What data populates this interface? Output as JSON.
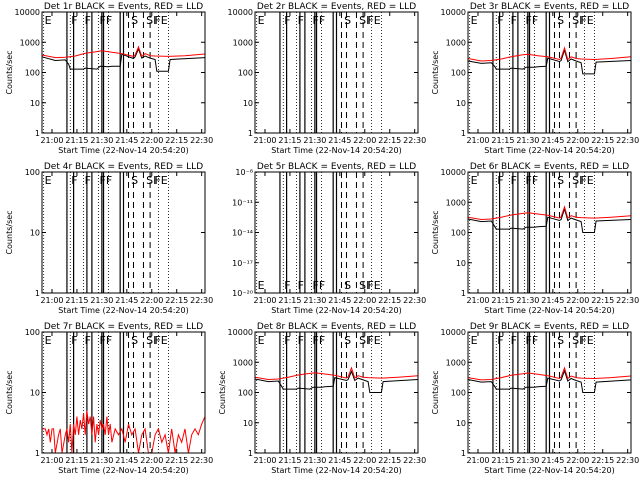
{
  "colors": {
    "events": "#000000",
    "lld": "#ff0000",
    "background": "#ffffff"
  },
  "x_axis": {
    "tick_labels": [
      "21:00",
      "21:15",
      "21:30",
      "21:45",
      "22:00",
      "22:15",
      "22:30"
    ],
    "range_minutes_after_2100": [
      -6,
      92
    ],
    "xlabel": "Start Time (22-Nov-14 20:54:20)"
  },
  "flags": {
    "solid_lines_minutes": [
      9,
      13,
      21,
      24,
      30,
      31,
      41,
      43
    ],
    "dashed_lines_minutes": [
      46,
      49,
      55,
      59
    ],
    "dotted_lines_minutes": [
      -5,
      11,
      19,
      28,
      34,
      64,
      70
    ],
    "letters": [
      {
        "text": "E",
        "minute": -5
      },
      {
        "text": "F",
        "minute": 11
      },
      {
        "text": "F",
        "minute": 19
      },
      {
        "text": "FF",
        "minute": 28
      },
      {
        "text": "S",
        "minute": 47
      },
      {
        "text": "SI",
        "minute": 56
      },
      {
        "text": "FE",
        "minute": 61
      }
    ]
  },
  "chart_data": [
    {
      "type": "line",
      "title": "Det 1r BLACK = Events, RED = LLD",
      "ylabel": "Counts/sec",
      "yscale": "log",
      "ylim": [
        1,
        10000
      ],
      "ytick_labels": [
        "1",
        "10",
        "100",
        "1000",
        "10000"
      ],
      "letters_at": "top",
      "series": [
        {
          "name": "Events",
          "x": [
            -6,
            2,
            8,
            10,
            11,
            19,
            20,
            27,
            29,
            34,
            36,
            41,
            42,
            49,
            50,
            52,
            54,
            56,
            59,
            62,
            63,
            70,
            71,
            92
          ],
          "y": [
            330,
            250,
            260,
            190,
            130,
            130,
            140,
            130,
            160,
            155,
            160,
            160,
            400,
            290,
            330,
            600,
            300,
            350,
            300,
            270,
            110,
            110,
            270,
            310
          ]
        },
        {
          "name": "LLD",
          "x": [
            -6,
            2,
            8,
            14,
            20,
            26,
            30,
            36,
            42,
            49,
            50,
            52,
            54,
            56,
            59,
            62,
            70,
            80,
            92
          ],
          "y": [
            380,
            310,
            320,
            350,
            430,
            480,
            520,
            470,
            420,
            340,
            380,
            700,
            340,
            420,
            360,
            350,
            340,
            360,
            410
          ]
        }
      ]
    },
    {
      "type": "line",
      "title": "Det 2r BLACK = Events, RED = LLD",
      "ylabel": "",
      "yscale": "log",
      "ylim": [
        1,
        10000
      ],
      "ytick_labels": [
        "1",
        "10",
        "100",
        "1000",
        "10000"
      ],
      "letters_at": "top",
      "series": []
    },
    {
      "type": "line",
      "title": "Det 3r BLACK = Events, RED = LLD",
      "ylabel": "Counts/sec",
      "yscale": "log",
      "ylim": [
        1,
        10000
      ],
      "ytick_labels": [
        "1",
        "10",
        "100",
        "1000",
        "10000"
      ],
      "letters_at": "top",
      "series": [
        {
          "name": "Events",
          "x": [
            -6,
            2,
            8,
            10,
            11,
            19,
            20,
            27,
            29,
            34,
            36,
            41,
            42,
            49,
            50,
            52,
            54,
            56,
            59,
            62,
            63,
            70,
            71,
            92
          ],
          "y": [
            240,
            200,
            210,
            160,
            130,
            130,
            140,
            130,
            150,
            150,
            155,
            160,
            300,
            230,
            250,
            550,
            230,
            280,
            240,
            210,
            90,
            90,
            220,
            250
          ]
        },
        {
          "name": "LLD",
          "x": [
            -6,
            2,
            8,
            14,
            20,
            26,
            30,
            36,
            42,
            49,
            50,
            52,
            54,
            56,
            59,
            62,
            70,
            80,
            92
          ],
          "y": [
            290,
            240,
            250,
            280,
            330,
            380,
            400,
            360,
            330,
            270,
            300,
            650,
            270,
            330,
            290,
            280,
            270,
            290,
            330
          ]
        }
      ]
    },
    {
      "type": "line",
      "title": "Det 4r BLACK = Events, RED = LLD",
      "ylabel": "Counts/sec",
      "yscale": "log",
      "ylim": [
        1,
        100
      ],
      "ytick_labels": [
        "1",
        "10",
        "100"
      ],
      "letters_at": "top",
      "series": []
    },
    {
      "type": "line",
      "title": "Det 5r BLACK = Events, RED = LLD",
      "ylabel": "",
      "yscale": "log",
      "ylim": [
        1e-20,
        1e-08
      ],
      "ytick_labels": [
        "10⁻²⁰",
        "10⁻¹⁷",
        "10⁻¹⁴",
        "10⁻¹¹",
        "10⁻⁸"
      ],
      "letters_at": "bottom",
      "series": []
    },
    {
      "type": "line",
      "title": "Det 6r BLACK = Events, RED = LLD",
      "ylabel": "Counts/sec",
      "yscale": "log",
      "ylim": [
        1,
        10000
      ],
      "ytick_labels": [
        "1",
        "10",
        "100",
        "1000",
        "10000"
      ],
      "letters_at": "top",
      "series": [
        {
          "name": "Events",
          "x": [
            -6,
            2,
            8,
            10,
            11,
            19,
            20,
            27,
            29,
            34,
            36,
            41,
            42,
            49,
            50,
            52,
            54,
            56,
            59,
            62,
            63,
            70,
            71,
            92
          ],
          "y": [
            280,
            230,
            240,
            160,
            130,
            130,
            140,
            130,
            150,
            150,
            155,
            160,
            320,
            250,
            270,
            600,
            250,
            300,
            260,
            230,
            100,
            100,
            240,
            270
          ]
        },
        {
          "name": "LLD",
          "x": [
            -6,
            2,
            8,
            14,
            20,
            26,
            30,
            36,
            42,
            49,
            50,
            52,
            54,
            56,
            59,
            62,
            70,
            80,
            92
          ],
          "y": [
            320,
            270,
            280,
            320,
            380,
            420,
            450,
            410,
            370,
            300,
            330,
            700,
            300,
            360,
            320,
            310,
            300,
            320,
            360
          ]
        }
      ]
    },
    {
      "type": "line",
      "title": "Det 7r BLACK = Events, RED = LLD",
      "ylabel": "Counts/sec",
      "yscale": "log",
      "ylim": [
        1,
        100
      ],
      "ytick_labels": [
        "1",
        "10",
        "100"
      ],
      "letters_at": "top",
      "series": [
        {
          "name": "LLD",
          "x": [
            -6,
            -4,
            -3,
            -2,
            -1,
            0,
            1,
            2,
            4,
            5,
            6,
            8,
            9,
            10,
            11,
            12,
            13,
            14,
            15,
            16,
            17,
            18,
            19,
            20,
            21,
            22,
            23,
            24,
            25,
            26,
            27,
            28,
            29,
            30,
            31,
            32,
            33,
            34,
            35,
            36,
            38,
            40,
            42,
            44,
            46,
            48,
            50,
            52,
            54,
            56,
            58,
            60,
            62,
            64,
            66,
            68,
            70,
            72,
            74,
            76,
            78,
            80,
            82,
            84,
            86,
            88,
            90,
            92
          ],
          "y": [
            2.5,
            2.5,
            2,
            2.5,
            1.5,
            2.5,
            2.5,
            1,
            2,
            2.5,
            1,
            2,
            2.5,
            1.5,
            3,
            1,
            3,
            2,
            4,
            2,
            3.5,
            2.5,
            4.5,
            2,
            5,
            3,
            4,
            2,
            4,
            1.5,
            3,
            2,
            3.5,
            2.5,
            3,
            2,
            4,
            2,
            3,
            1.5,
            2.5,
            2,
            2.5,
            1.5,
            3,
            2,
            2.5,
            1,
            2,
            2.5,
            1,
            1,
            2,
            2.5,
            1.5,
            2,
            1,
            2.5,
            1,
            2,
            1.5,
            2.5,
            1,
            2,
            2.5,
            2,
            3,
            4
          ]
        }
      ]
    },
    {
      "type": "line",
      "title": "Det 8r BLACK = Events, RED = LLD",
      "ylabel": "Counts/sec",
      "yscale": "log",
      "ylim": [
        1,
        10000
      ],
      "ytick_labels": [
        "1",
        "10",
        "100",
        "1000",
        "10000"
      ],
      "letters_at": "top",
      "series": [
        {
          "name": "Events",
          "x": [
            -6,
            2,
            8,
            10,
            11,
            19,
            20,
            27,
            29,
            34,
            36,
            41,
            42,
            49,
            50,
            52,
            54,
            56,
            59,
            62,
            63,
            70,
            71,
            92
          ],
          "y": [
            280,
            230,
            240,
            160,
            130,
            130,
            140,
            130,
            150,
            150,
            155,
            160,
            310,
            250,
            270,
            500,
            250,
            300,
            260,
            230,
            100,
            100,
            230,
            270
          ]
        },
        {
          "name": "LLD",
          "x": [
            -6,
            2,
            8,
            14,
            20,
            26,
            30,
            36,
            42,
            49,
            50,
            52,
            54,
            56,
            59,
            62,
            70,
            80,
            92
          ],
          "y": [
            320,
            270,
            280,
            320,
            380,
            420,
            450,
            410,
            370,
            300,
            330,
            650,
            300,
            360,
            320,
            310,
            300,
            320,
            360
          ]
        }
      ]
    },
    {
      "type": "line",
      "title": "Det 9r BLACK = Events, RED = LLD",
      "ylabel": "Counts/sec",
      "yscale": "log",
      "ylim": [
        1,
        10000
      ],
      "ytick_labels": [
        "1",
        "10",
        "100",
        "1000",
        "10000"
      ],
      "letters_at": "top",
      "series": [
        {
          "name": "Events",
          "x": [
            -6,
            2,
            8,
            10,
            11,
            19,
            20,
            27,
            29,
            34,
            36,
            41,
            42,
            49,
            50,
            52,
            54,
            56,
            59,
            62,
            63,
            70,
            71,
            92
          ],
          "y": [
            270,
            220,
            230,
            160,
            130,
            130,
            140,
            130,
            150,
            150,
            155,
            160,
            300,
            240,
            260,
            520,
            240,
            290,
            250,
            220,
            100,
            100,
            220,
            260
          ]
        },
        {
          "name": "LLD",
          "x": [
            -6,
            2,
            8,
            14,
            20,
            26,
            30,
            36,
            42,
            49,
            50,
            52,
            54,
            56,
            59,
            62,
            70,
            80,
            92
          ],
          "y": [
            310,
            260,
            270,
            310,
            370,
            410,
            440,
            400,
            360,
            290,
            320,
            650,
            290,
            350,
            310,
            300,
            290,
            310,
            350
          ]
        }
      ]
    }
  ]
}
